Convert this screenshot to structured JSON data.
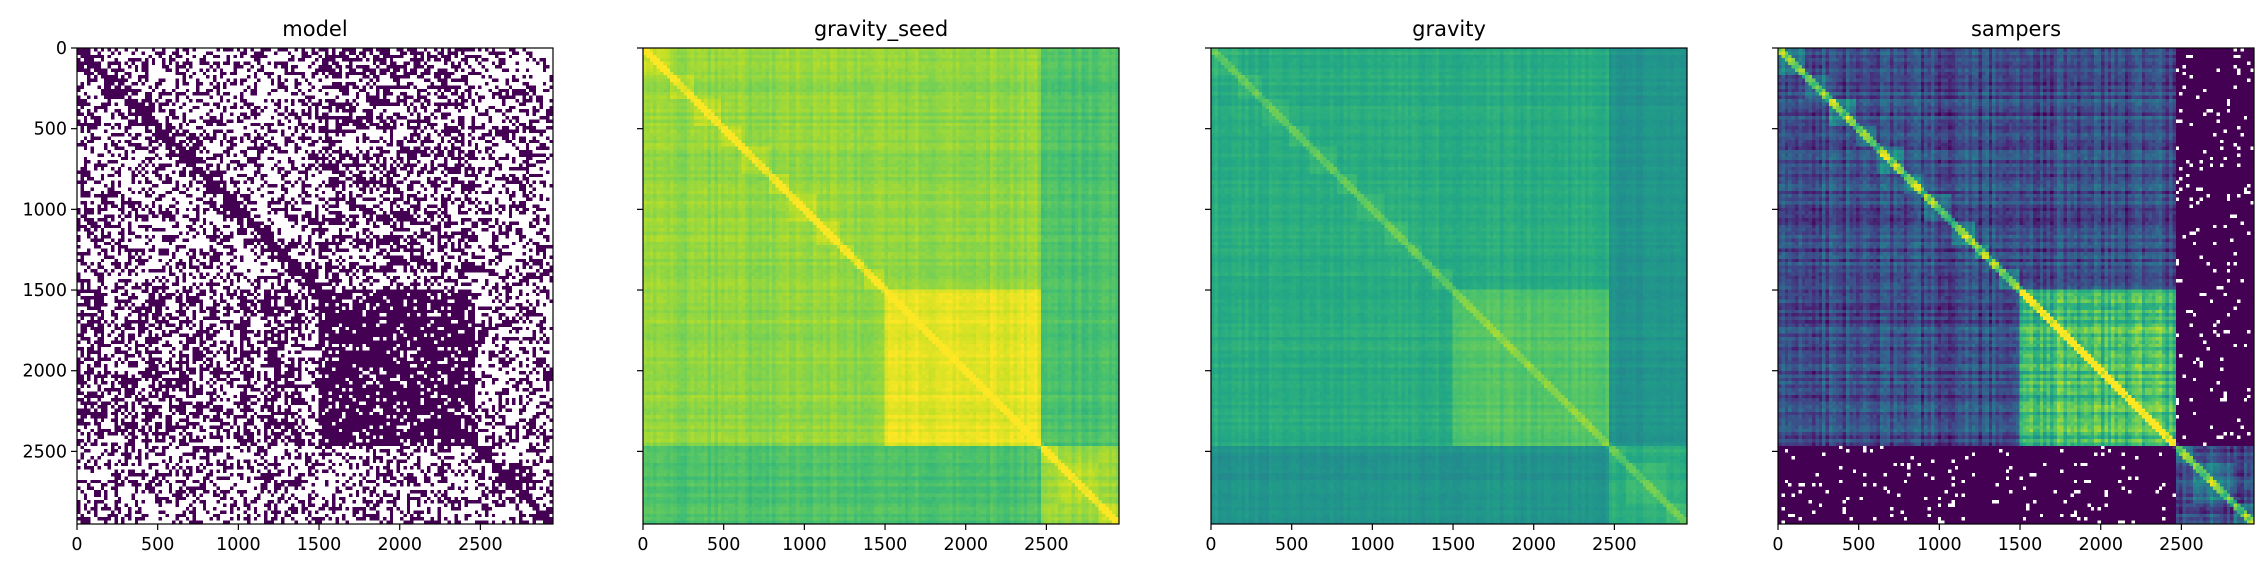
{
  "chart_data": [
    {
      "type": "heatmap",
      "title": "model",
      "colormap": "binary-purple",
      "colors": {
        "low": "#ffffff",
        "high": "#440154"
      },
      "x_ticks": [
        "0",
        "500",
        "1000",
        "1500",
        "2000",
        "2500"
      ],
      "y_ticks": [
        "0",
        "500",
        "1000",
        "1500",
        "2000",
        "2500"
      ],
      "x_tick_values": [
        0,
        500,
        1000,
        1500,
        2000,
        2500
      ],
      "y_tick_values": [
        0,
        500,
        1000,
        1500,
        2000,
        2500
      ],
      "xlim": [
        0,
        2950
      ],
      "ylim": [
        2950,
        0
      ],
      "y_ticklabels_visible": true,
      "grid": false,
      "structure": {
        "dense_blocks": [
          [
            0,
            150
          ],
          [
            760,
            900
          ],
          [
            900,
            1060
          ],
          [
            1060,
            1220
          ],
          [
            1220,
            1300
          ],
          [
            1300,
            1350
          ],
          [
            1480,
            2460
          ],
          [
            2460,
            2550
          ],
          [
            2550,
            2950
          ]
        ],
        "diagonal": true
      }
    },
    {
      "type": "heatmap",
      "title": "gravity_seed",
      "colormap": "viridis",
      "x_ticks": [
        "0",
        "500",
        "1000",
        "1500",
        "2000",
        "2500"
      ],
      "x_tick_values": [
        0,
        500,
        1000,
        1500,
        2000,
        2500
      ],
      "xlim": [
        0,
        2950
      ],
      "ylim": [
        2950,
        0
      ],
      "y_ticklabels_visible": false,
      "grid": false,
      "structure": {
        "value_range": [
          0.6,
          1.0
        ],
        "bright_block": [
          1480,
          2460
        ]
      }
    },
    {
      "type": "heatmap",
      "title": "gravity",
      "colormap": "viridis",
      "x_ticks": [
        "0",
        "500",
        "1000",
        "1500",
        "2000",
        "2500"
      ],
      "x_tick_values": [
        0,
        500,
        1000,
        1500,
        2000,
        2500
      ],
      "xlim": [
        0,
        2950
      ],
      "ylim": [
        2950,
        0
      ],
      "y_ticklabels_visible": false,
      "grid": false,
      "structure": {
        "value_range": [
          0.45,
          0.85
        ],
        "dark_band": [
          2460,
          2560
        ]
      }
    },
    {
      "type": "heatmap",
      "title": "sampers",
      "colormap": "viridis",
      "x_ticks": [
        "0",
        "500",
        "1000",
        "1500",
        "2000",
        "2500"
      ],
      "x_tick_values": [
        0,
        500,
        1000,
        1500,
        2000,
        2500
      ],
      "xlim": [
        0,
        2950
      ],
      "ylim": [
        2950,
        0
      ],
      "y_ticklabels_visible": false,
      "grid": false,
      "structure": {
        "value_range": [
          0.0,
          0.6
        ],
        "diagonal": true,
        "white_gaps_band": [
          2460,
          2950
        ]
      }
    }
  ]
}
